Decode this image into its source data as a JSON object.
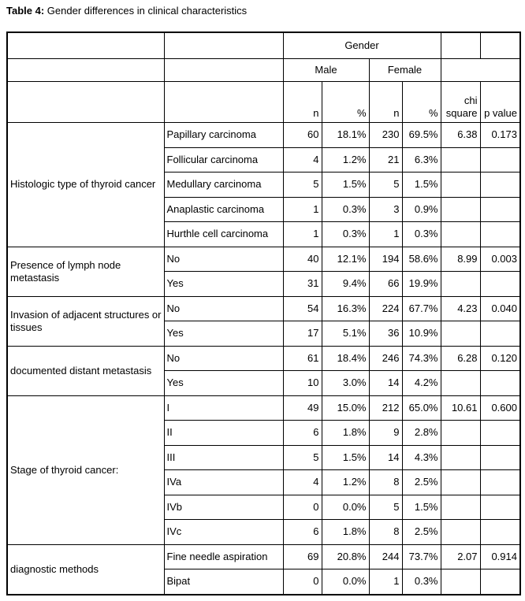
{
  "caption": {
    "label": "Table 4:",
    "text": "Gender differences in clinical characteristics"
  },
  "table": {
    "header": {
      "gender": "Gender",
      "male": "Male",
      "female": "Female",
      "n_label": "n",
      "pct_label": "%",
      "chi_label": "chi square",
      "p_label": "p value"
    },
    "groups": [
      {
        "label": "Histologic type of thyroid cancer",
        "rows": [
          {
            "sub": "Papillary carcinoma",
            "male_n": "60",
            "male_pct": "18.1%",
            "female_n": "230",
            "female_pct": "69.5%",
            "chi": "6.38",
            "p": "0.173"
          },
          {
            "sub": "Follicular carcinoma",
            "male_n": "4",
            "male_pct": "1.2%",
            "female_n": "21",
            "female_pct": "6.3%",
            "chi": "",
            "p": ""
          },
          {
            "sub": "Medullary carcinoma",
            "male_n": "5",
            "male_pct": "1.5%",
            "female_n": "5",
            "female_pct": "1.5%",
            "chi": "",
            "p": ""
          },
          {
            "sub": "Anaplastic carcinoma",
            "male_n": "1",
            "male_pct": "0.3%",
            "female_n": "3",
            "female_pct": "0.9%",
            "chi": "",
            "p": ""
          },
          {
            "sub": "Hurthle cell carcinoma",
            "male_n": "1",
            "male_pct": "0.3%",
            "female_n": "1",
            "female_pct": "0.3%",
            "chi": "",
            "p": ""
          }
        ]
      },
      {
        "label": "Presence of lymph node metastasis",
        "rows": [
          {
            "sub": "No",
            "male_n": "40",
            "male_pct": "12.1%",
            "female_n": "194",
            "female_pct": "58.6%",
            "chi": "8.99",
            "p": "0.003"
          },
          {
            "sub": "Yes",
            "male_n": "31",
            "male_pct": "9.4%",
            "female_n": "66",
            "female_pct": "19.9%",
            "chi": "",
            "p": ""
          }
        ]
      },
      {
        "label": "Invasion of adjacent structures or tissues",
        "rows": [
          {
            "sub": "No",
            "male_n": "54",
            "male_pct": "16.3%",
            "female_n": "224",
            "female_pct": "67.7%",
            "chi": "4.23",
            "p": "0.040"
          },
          {
            "sub": "Yes",
            "male_n": "17",
            "male_pct": "5.1%",
            "female_n": "36",
            "female_pct": "10.9%",
            "chi": "",
            "p": ""
          }
        ]
      },
      {
        "label": "documented distant metastasis",
        "rows": [
          {
            "sub": "No",
            "male_n": "61",
            "male_pct": "18.4%",
            "female_n": "246",
            "female_pct": "74.3%",
            "chi": "6.28",
            "p": "0.120"
          },
          {
            "sub": "Yes",
            "male_n": "10",
            "male_pct": "3.0%",
            "female_n": "14",
            "female_pct": "4.2%",
            "chi": "",
            "p": ""
          }
        ]
      },
      {
        "label": "Stage of thyroid cancer:",
        "rows": [
          {
            "sub": "I",
            "male_n": "49",
            "male_pct": "15.0%",
            "female_n": "212",
            "female_pct": "65.0%",
            "chi": "10.61",
            "p": "0.600"
          },
          {
            "sub": "II",
            "male_n": "6",
            "male_pct": "1.8%",
            "female_n": "9",
            "female_pct": "2.8%",
            "chi": "",
            "p": ""
          },
          {
            "sub": "III",
            "male_n": "5",
            "male_pct": "1.5%",
            "female_n": "14",
            "female_pct": "4.3%",
            "chi": "",
            "p": ""
          },
          {
            "sub": "IVa",
            "male_n": "4",
            "male_pct": "1.2%",
            "female_n": "8",
            "female_pct": "2.5%",
            "chi": "",
            "p": ""
          },
          {
            "sub": "IVb",
            "male_n": "0",
            "male_pct": "0.0%",
            "female_n": "5",
            "female_pct": "1.5%",
            "chi": "",
            "p": ""
          },
          {
            "sub": "IVc",
            "male_n": "6",
            "male_pct": "1.8%",
            "female_n": "8",
            "female_pct": "2.5%",
            "chi": "",
            "p": ""
          }
        ]
      },
      {
        "label": "diagnostic methods",
        "rows": [
          {
            "sub": "Fine needle aspiration",
            "male_n": "69",
            "male_pct": "20.8%",
            "female_n": "244",
            "female_pct": "73.7%",
            "chi": "2.07",
            "p": "0.914"
          },
          {
            "sub": "Bipat",
            "male_n": "0",
            "male_pct": "0.0%",
            "female_n": "1",
            "female_pct": "0.3%",
            "chi": "",
            "p": ""
          }
        ]
      }
    ]
  }
}
